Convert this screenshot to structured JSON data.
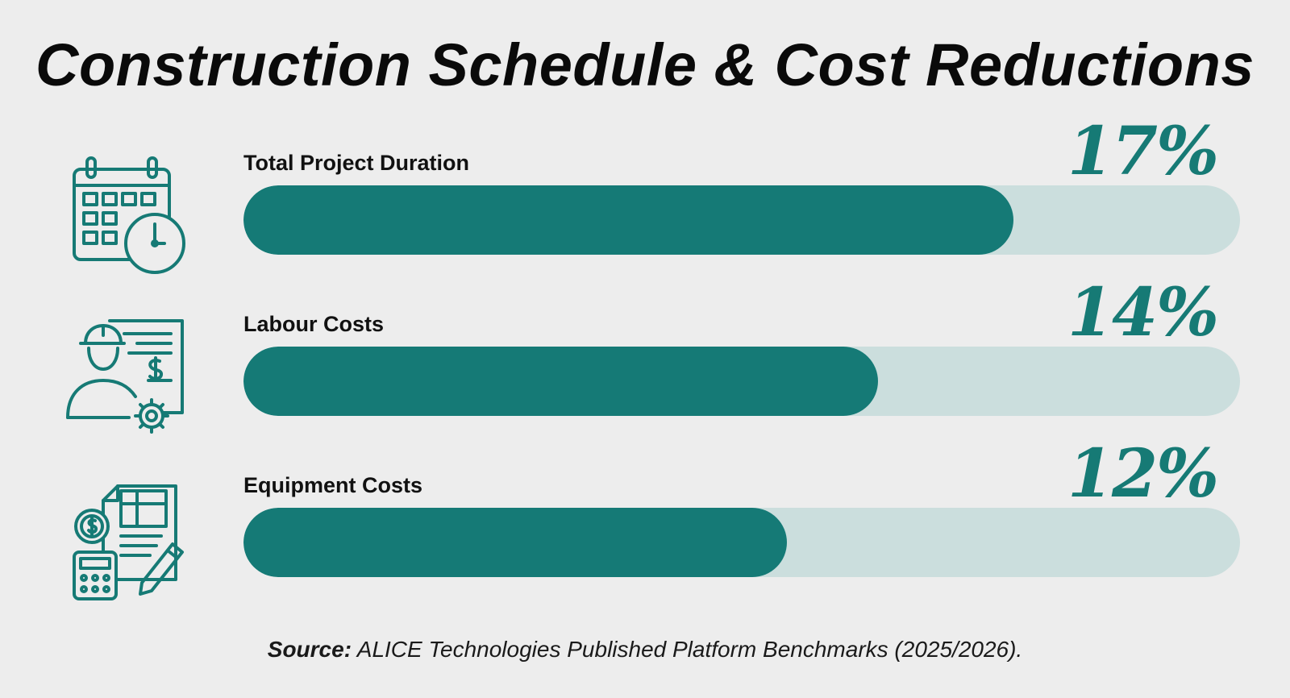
{
  "title": "Construction Schedule & Cost Reductions",
  "chart_data": {
    "type": "bar",
    "orientation": "horizontal",
    "categories": [
      "Total Project Duration",
      "Labour Costs",
      "Equipment Costs"
    ],
    "values": [
      17,
      14,
      12
    ],
    "value_labels": [
      "17%",
      "14%",
      "12%"
    ],
    "xlim": [
      0,
      22
    ],
    "unit": "%",
    "bar_color": "#157a76",
    "track_color": "#cbdedd",
    "label_color": "#167a75",
    "icons": [
      "calendar-clock-icon",
      "worker-invoice-gear-icon",
      "blueprint-calculator-icon"
    ]
  },
  "source": {
    "label": "Source:",
    "text": "ALICE Technologies Published Platform Benchmarks (2025/2026)."
  },
  "colors": {
    "background": "#ededed",
    "accent": "#157a76"
  }
}
